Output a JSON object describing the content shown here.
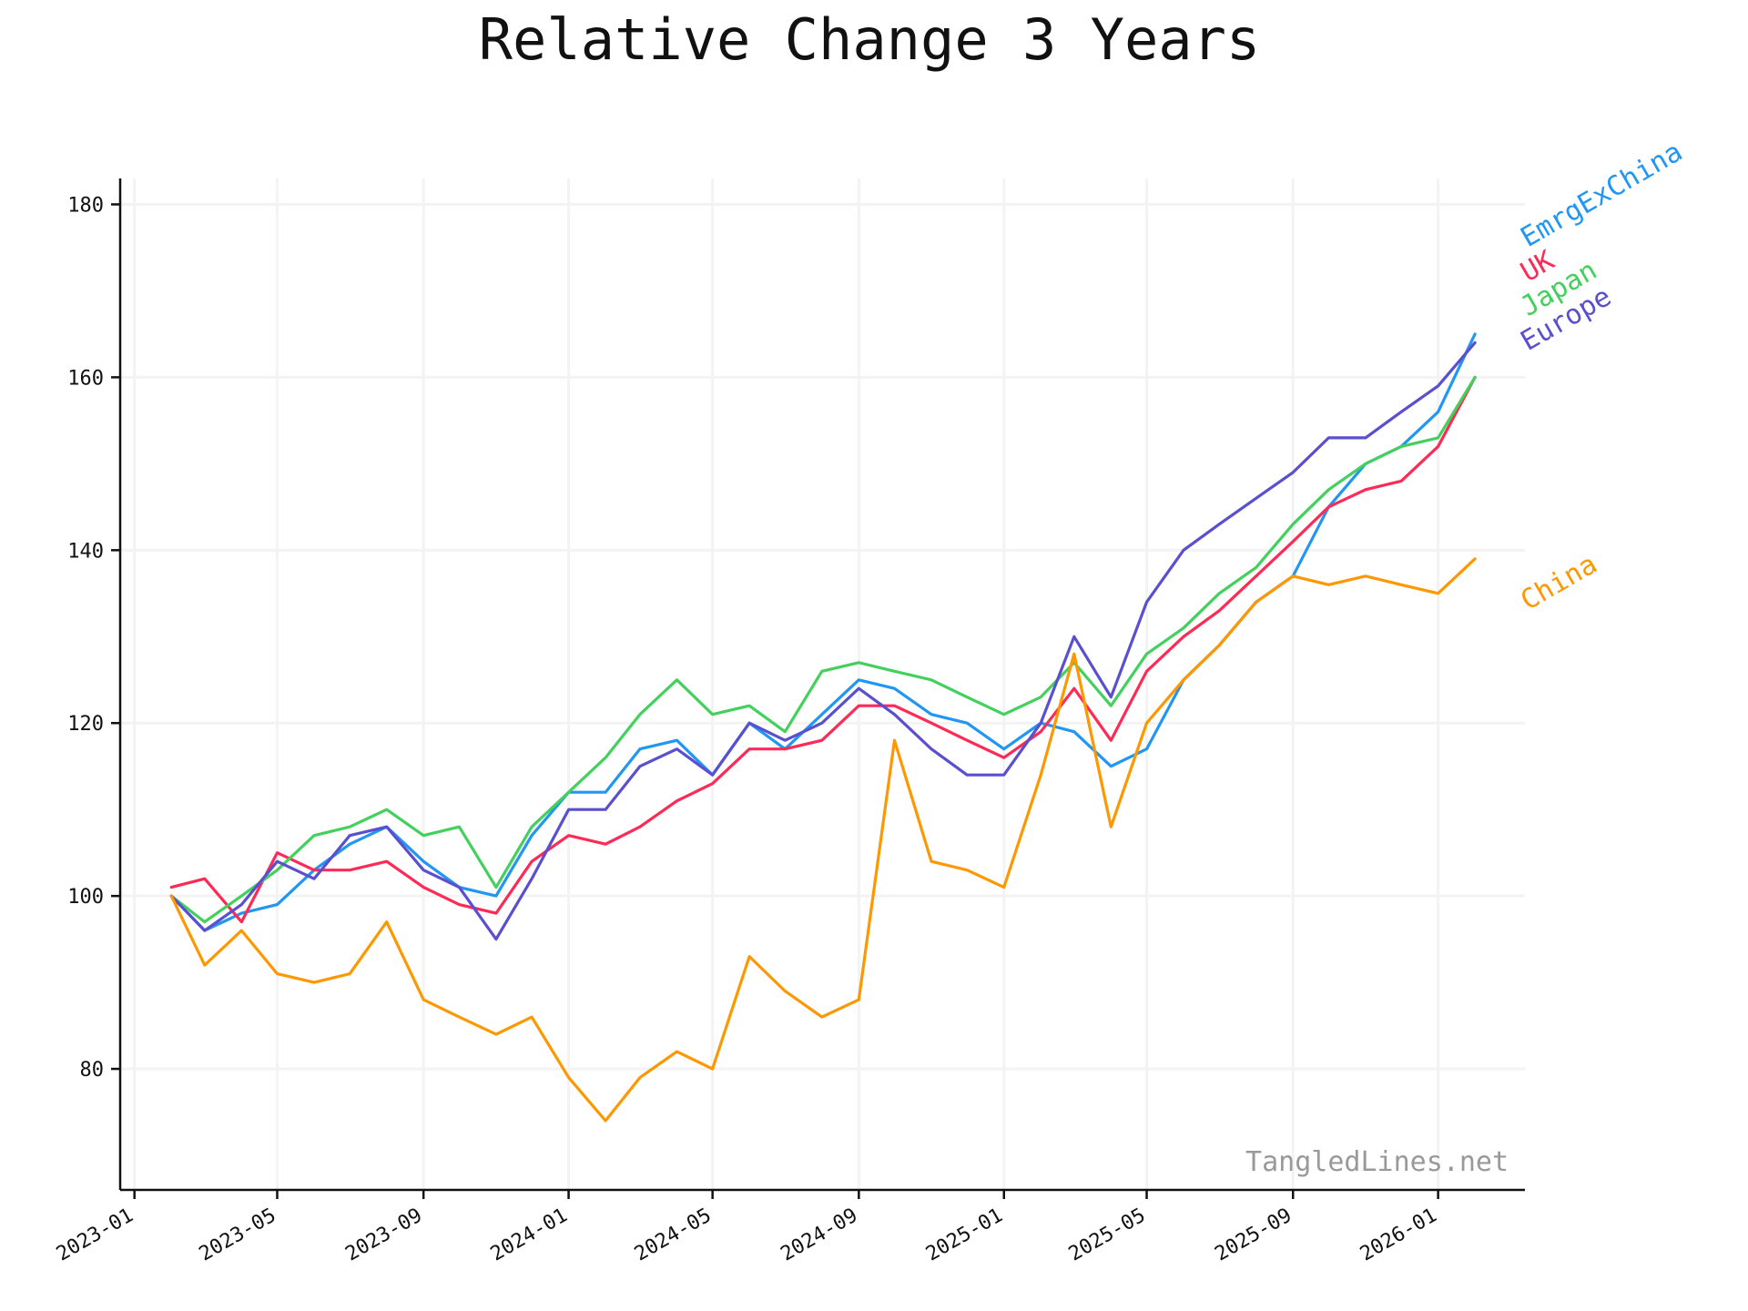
{
  "chart_data": {
    "type": "line",
    "title": "Relative Change 3 Years",
    "xlabel": "",
    "ylabel": "",
    "watermark": "TangledLines.net",
    "x_ticks": [
      "2023-01",
      "2023-05",
      "2023-09",
      "2024-01",
      "2024-05",
      "2024-09",
      "2025-01",
      "2025-05",
      "2025-09",
      "2026-01"
    ],
    "y_ticks": [
      80,
      100,
      120,
      140,
      160,
      180
    ],
    "xlim": [
      "2022-12-20",
      "2026-03-15"
    ],
    "ylim": [
      66,
      183
    ],
    "grid": true,
    "legend": "direct labels at right end of lines",
    "x": [
      "2023-02-01",
      "2023-03-01",
      "2023-04-01",
      "2023-05-01",
      "2023-06-01",
      "2023-07-01",
      "2023-08-01",
      "2023-09-01",
      "2023-10-01",
      "2023-11-01",
      "2023-12-01",
      "2024-01-01",
      "2024-02-01",
      "2024-03-01",
      "2024-04-01",
      "2024-05-01",
      "2024-06-01",
      "2024-07-01",
      "2024-08-01",
      "2024-09-01",
      "2024-10-01",
      "2024-11-01",
      "2024-12-01",
      "2025-01-01",
      "2025-02-01",
      "2025-03-01",
      "2025-04-01",
      "2025-05-01",
      "2025-06-01",
      "2025-07-01",
      "2025-08-01",
      "2025-09-01",
      "2025-10-01",
      "2025-11-01",
      "2025-12-01",
      "2026-01-01",
      "2026-02-01"
    ],
    "series": [
      {
        "name": "EmrgExChina",
        "color": "#2196f3",
        "values": [
          100,
          96,
          98,
          99,
          103,
          106,
          108,
          104,
          101,
          100,
          107,
          112,
          112,
          117,
          118,
          114,
          120,
          117,
          121,
          125,
          124,
          121,
          120,
          117,
          120,
          119,
          115,
          117,
          125,
          129,
          134,
          137,
          145,
          150,
          152,
          156,
          165
        ],
        "label_value": 175
      },
      {
        "name": "UK",
        "color": "#ff2a55",
        "values": [
          101,
          102,
          97,
          105,
          103,
          103,
          104,
          101,
          99,
          98,
          104,
          107,
          106,
          108,
          111,
          113,
          117,
          117,
          118,
          122,
          122,
          120,
          118,
          116,
          119,
          124,
          118,
          126,
          130,
          133,
          137,
          141,
          145,
          147,
          148,
          152,
          160
        ],
        "label_value": 171
      },
      {
        "name": "Japan",
        "color": "#43d05d",
        "values": [
          100,
          97,
          100,
          103,
          107,
          108,
          110,
          107,
          108,
          101,
          108,
          112,
          116,
          121,
          125,
          121,
          122,
          119,
          126,
          127,
          126,
          125,
          123,
          121,
          123,
          127,
          122,
          128,
          131,
          135,
          138,
          143,
          147,
          150,
          152,
          153,
          160
        ],
        "label_value": 167
      },
      {
        "name": "Europe",
        "color": "#5a4fcf",
        "values": [
          100,
          96,
          99,
          104,
          102,
          107,
          108,
          103,
          101,
          95,
          102,
          110,
          110,
          115,
          117,
          114,
          120,
          118,
          120,
          124,
          121,
          117,
          114,
          114,
          120,
          130,
          123,
          134,
          140,
          143,
          146,
          149,
          153,
          153,
          156,
          159,
          164
        ],
        "label_value": 163
      },
      {
        "name": "China",
        "color": "#ff9800",
        "values": [
          100,
          92,
          96,
          91,
          90,
          91,
          97,
          88,
          86,
          84,
          86,
          79,
          74,
          79,
          82,
          80,
          93,
          89,
          86,
          88,
          118,
          104,
          103,
          101,
          114,
          128,
          108,
          120,
          125,
          129,
          134,
          137,
          136,
          137,
          136,
          135,
          139
        ],
        "label_value": 133
      }
    ]
  }
}
